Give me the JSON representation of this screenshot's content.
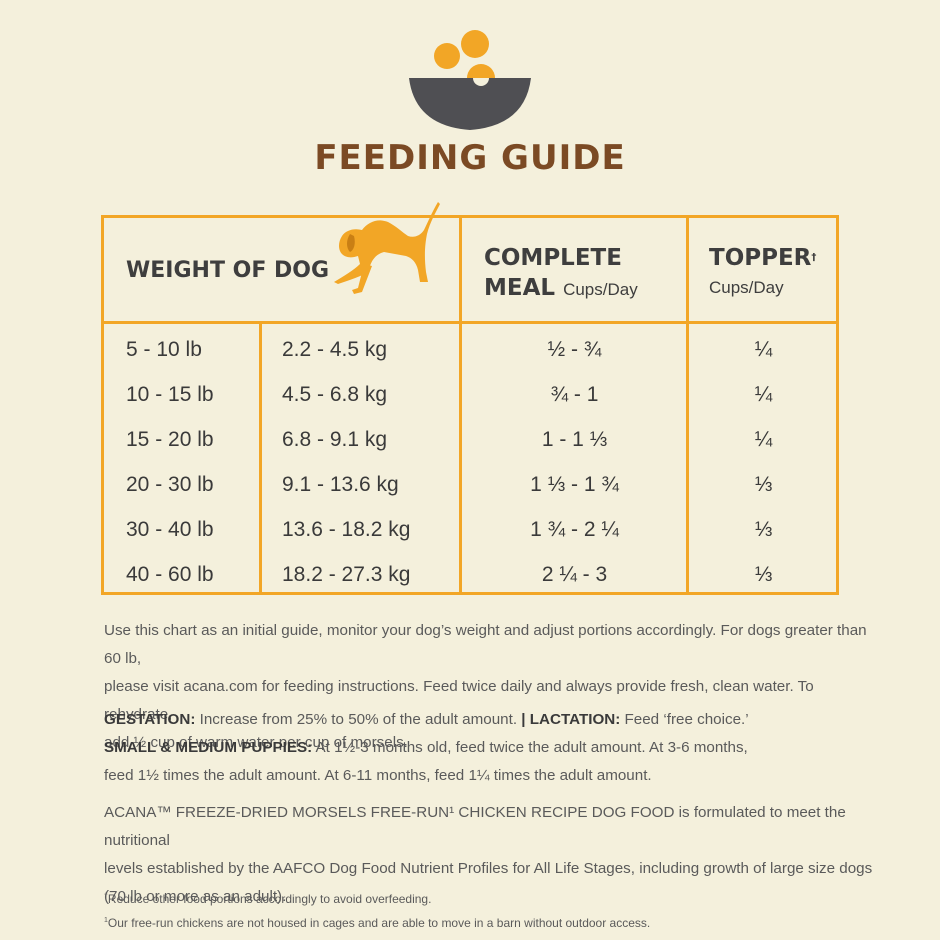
{
  "title": "FEEDING GUIDE",
  "colors": {
    "accent": "#f2a626",
    "title": "#7b4a24",
    "background": "#f4f0dc",
    "bowl": "#4f4f53"
  },
  "icons": {
    "logo": "food-bowl-icon",
    "dog": "playing-dog-icon"
  },
  "table": {
    "headers": {
      "weight": "WEIGHT OF DOG",
      "complete_line1": "COMPLETE",
      "complete_line2": "MEAL",
      "complete_unit": "Cups/Day",
      "topper": "TOPPER",
      "topper_mark": "†",
      "topper_unit": "Cups/Day"
    },
    "rows": [
      {
        "lb": "5 - 10 lb",
        "kg": "2.2 - 4.5 kg",
        "meal": "½ - ¾",
        "topper": "¼"
      },
      {
        "lb": "10 - 15 lb",
        "kg": "4.5 - 6.8 kg",
        "meal": "¾ -  1",
        "topper": "¼"
      },
      {
        "lb": "15 - 20 lb",
        "kg": "6.8 - 9.1 kg",
        "meal": "1 - 1 ⅓",
        "topper": "¼"
      },
      {
        "lb": "20 - 30 lb",
        "kg": "9.1 - 13.6 kg",
        "meal": "1 ⅓ - 1 ¾",
        "topper": "⅓"
      },
      {
        "lb": "30 - 40 lb",
        "kg": "13.6 - 18.2 kg",
        "meal": "1 ¾ - 2 ¼",
        "topper": "⅓"
      },
      {
        "lb": "40 - 60 lb",
        "kg": "18.2 - 27.3 kg",
        "meal": "2 ¼ - 3",
        "topper": "⅓"
      }
    ]
  },
  "instructions": {
    "lines": [
      "Use this chart as an initial guide, monitor your dog’s weight and adjust portions accordingly. For dogs greater than 60 lb,",
      "please visit acana.com for feeding instructions. Feed twice daily and always provide fresh, clean water. To rehydrate,",
      "add ½ cup of warm water per cup of morsels."
    ]
  },
  "gestation": {
    "label": "GESTATION:",
    "text": " Increase from 25% to 50% of the adult amount. ",
    "lactation_label": "| LACTATION:",
    "lactation_text": " Feed ‘free choice.’"
  },
  "puppies": {
    "label": "SMALL & MEDIUM PUPPIES:",
    "text1": " At 1½-3 months old, feed twice the adult amount. At 3-6 months,",
    "text2": "feed 1½ times the adult amount. At 6-11 months, feed 1¼ times the adult amount."
  },
  "aafco": {
    "lines": [
      "ACANA™ FREEZE-DRIED MORSELS FREE-RUN¹ CHICKEN RECIPE DOG FOOD is formulated to meet the nutritional",
      "levels established by the AAFCO Dog Food Nutrient Profiles for All Life Stages, including growth of large size dogs",
      "(70 lb or more as an adult)."
    ]
  },
  "footnotes": [
    {
      "mark": "†",
      "text": "Reduce other food portions accordingly to avoid overfeeding."
    },
    {
      "mark": "1",
      "text": "Our free-run chickens are not housed in cages and are able to move in a barn without outdoor access."
    }
  ]
}
